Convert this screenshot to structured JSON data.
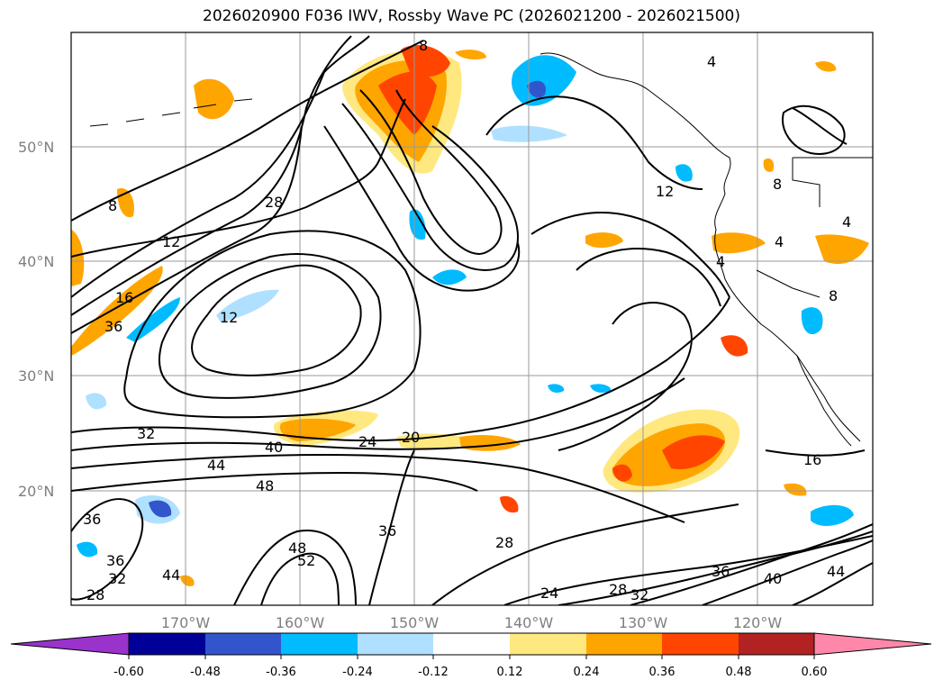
{
  "title": "2026020900 F036 IWV, Rossby Wave PC (2026021200 - 2026021500)",
  "lat_labels": [
    "50°N",
    "40°N",
    "30°N",
    "20°N"
  ],
  "lon_labels": [
    "170°W",
    "160°W",
    "150°W",
    "140°W",
    "130°W",
    "120°W"
  ],
  "contour_labels": [
    "8",
    "8",
    "4",
    "12",
    "12",
    "28",
    "16",
    "36",
    "12",
    "32",
    "40",
    "24",
    "20",
    "44",
    "48",
    "36",
    "36",
    "28",
    "16",
    "36",
    "32",
    "48",
    "52",
    "44",
    "28",
    "24",
    "28",
    "32",
    "36",
    "40",
    "44",
    "4",
    "4",
    "4",
    "8",
    "8"
  ],
  "colorbar": {
    "ticks": [
      "-0.60",
      "-0.48",
      "-0.36",
      "-0.24",
      "-0.12",
      "0.12",
      "0.24",
      "0.36",
      "0.48",
      "0.60"
    ],
    "colors": [
      "#9933cc",
      "#000099",
      "#3355cc",
      "#00bbff",
      "#b0e0ff",
      "#ffffff",
      "#ffe880",
      "#ffa500",
      "#ff4500",
      "#b22222",
      "#ff88aa"
    ]
  },
  "colors": {
    "orange": "#ffa500",
    "red_orange": "#ff4500",
    "yellow": "#ffe880",
    "light_blue": "#b0e0ff",
    "blue": "#00bbff",
    "royal": "#3355cc"
  }
}
